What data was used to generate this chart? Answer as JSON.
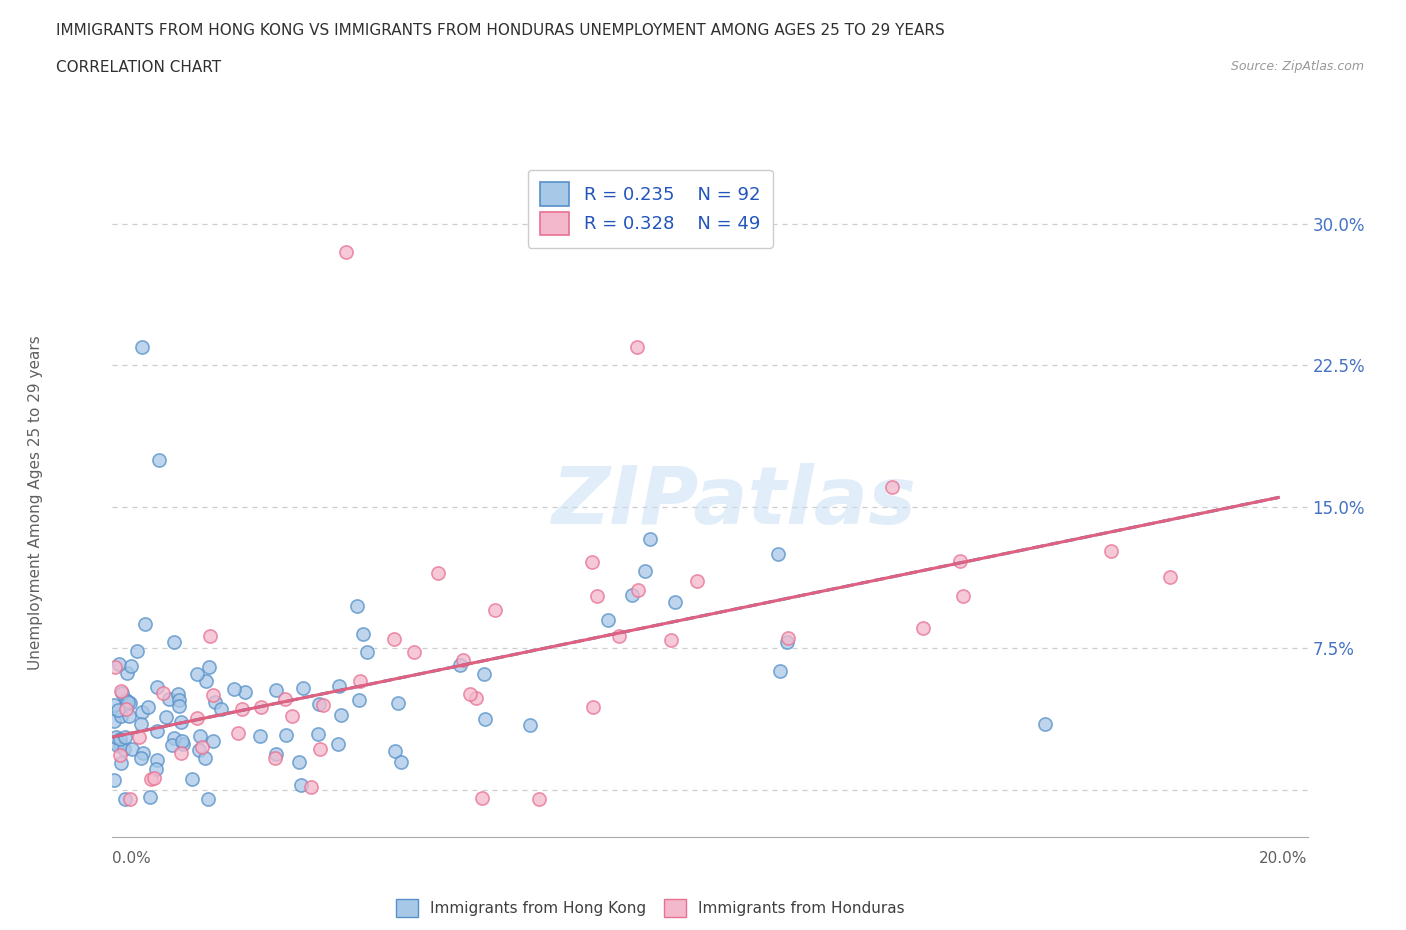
{
  "title_line1": "IMMIGRANTS FROM HONG KONG VS IMMIGRANTS FROM HONDURAS UNEMPLOYMENT AMONG AGES 25 TO 29 YEARS",
  "title_line2": "CORRELATION CHART",
  "source_text": "Source: ZipAtlas.com",
  "ylabel": "Unemployment Among Ages 25 to 29 years",
  "xlim": [
    0.0,
    0.205
  ],
  "ylim": [
    -0.025,
    0.33
  ],
  "yticks": [
    0.0,
    0.075,
    0.15,
    0.225,
    0.3
  ],
  "ytick_labels": [
    "",
    "7.5%",
    "15.0%",
    "22.5%",
    "30.0%"
  ],
  "watermark_text": "ZIPatlas",
  "color_hk": "#a8c8e8",
  "color_hn": "#f4b8cc",
  "color_hk_edge": "#5590c8",
  "color_hn_edge": "#e87090",
  "color_hk_line": "#4472c4",
  "color_hn_line": "#e06080",
  "title_color": "#303030",
  "tick_color": "#606060",
  "legend_text_color": "#2255bb",
  "grid_color": "#cccccc",
  "hk_line_start_y": 0.028,
  "hk_line_end_y": 0.155,
  "hn_line_start_y": 0.028,
  "hn_line_end_y": 0.155
}
